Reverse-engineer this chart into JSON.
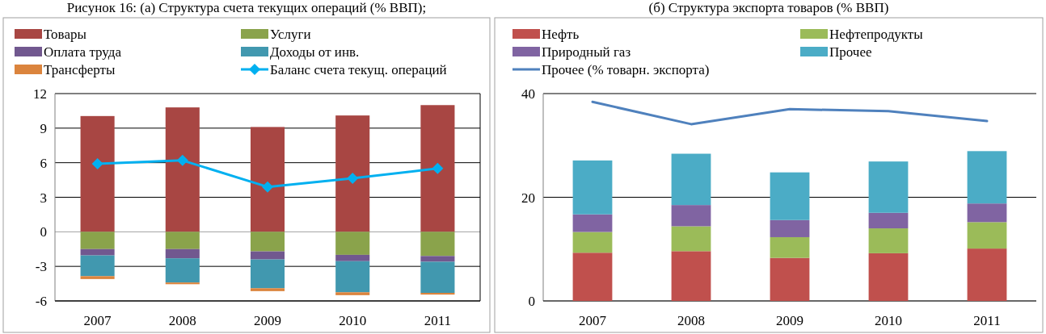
{
  "chart_data": [
    {
      "type": "bar",
      "title": "Рисунок 16: (а) Структура счета текущих операций (% ВВП);",
      "categories": [
        "2007",
        "2008",
        "2009",
        "2010",
        "2011"
      ],
      "stacked": true,
      "ylim": [
        -6,
        12
      ],
      "yticks": [
        -6,
        -3,
        0,
        3,
        6,
        9,
        12
      ],
      "grid": "y",
      "legend": "top",
      "series": [
        {
          "name": "Товары",
          "color": "#a84643",
          "values": [
            10.05,
            10.8,
            9.1,
            10.1,
            11.0
          ]
        },
        {
          "name": "Услуги",
          "color": "#8aa34b",
          "values": [
            -1.5,
            -1.5,
            -1.7,
            -2.0,
            -2.1
          ]
        },
        {
          "name": "Оплата труда",
          "color": "#71588f",
          "values": [
            -0.55,
            -0.8,
            -0.7,
            -0.55,
            -0.5
          ]
        },
        {
          "name": "Доходы от инв.",
          "color": "#4198af",
          "values": [
            -1.8,
            -2.1,
            -2.5,
            -2.7,
            -2.7
          ]
        },
        {
          "name": "Трансферты",
          "color": "#db843d",
          "values": [
            -0.25,
            -0.15,
            -0.25,
            -0.25,
            -0.15
          ]
        },
        {
          "name": "Баланс счета текущ. операций",
          "type": "line",
          "marker": "diamond",
          "color": "#00b0f0",
          "values": [
            5.9,
            6.2,
            3.9,
            4.65,
            5.5
          ]
        }
      ]
    },
    {
      "type": "bar",
      "title": "(б) Структура экспорта товаров (% ВВП)",
      "categories": [
        "2007",
        "2008",
        "2009",
        "2010",
        "2011"
      ],
      "stacked": true,
      "ylim": [
        0,
        40
      ],
      "yticks": [
        0,
        20,
        40
      ],
      "grid": "y",
      "legend": "top",
      "series": [
        {
          "name": "Нефть",
          "color": "#c0504d",
          "values": [
            9.3,
            9.6,
            8.3,
            9.2,
            10.1
          ]
        },
        {
          "name": "Нефтепродукты",
          "color": "#9bbb59",
          "values": [
            4.0,
            4.8,
            4.0,
            4.8,
            5.1
          ]
        },
        {
          "name": "Природный газ",
          "color": "#8064a2",
          "values": [
            3.4,
            4.1,
            3.3,
            3.0,
            3.6
          ]
        },
        {
          "name": "Прочее",
          "color": "#4bacc6",
          "values": [
            10.4,
            9.9,
            9.2,
            9.9,
            10.1
          ]
        },
        {
          "name": "Прочее (% товарн. экспорта)",
          "type": "line",
          "color": "#4f81bd",
          "values": [
            38.4,
            34.1,
            37.0,
            36.6,
            34.7
          ]
        }
      ]
    }
  ]
}
